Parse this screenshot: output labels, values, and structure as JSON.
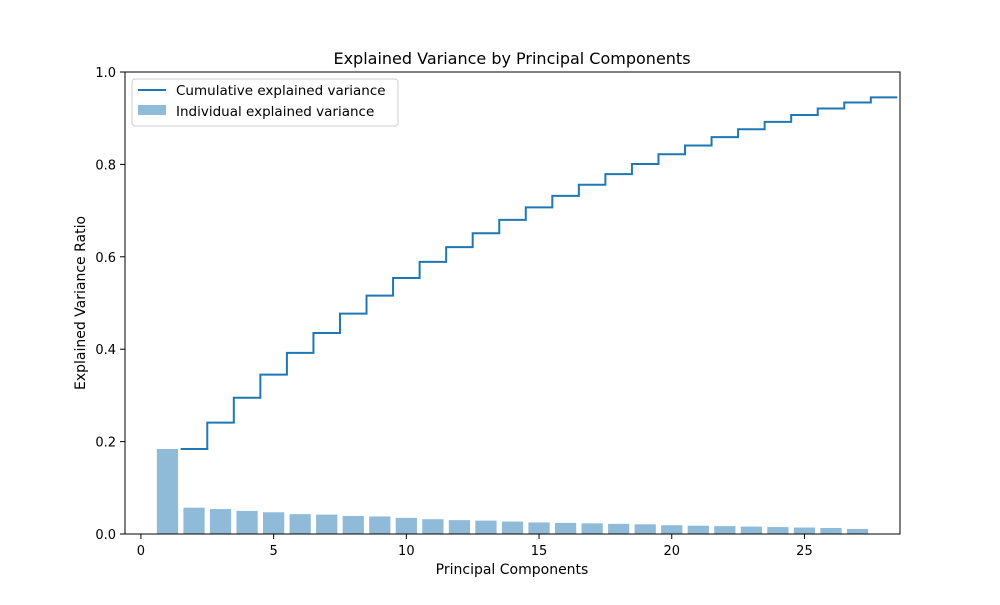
{
  "chart_data": {
    "type": "bar",
    "title": "Explained Variance by Principal Components",
    "xlabel": "Principal Components",
    "ylabel": "Explained Variance Ratio",
    "xlim": [
      -0.6,
      28.6
    ],
    "ylim": [
      0,
      1.0
    ],
    "xticks": [
      0,
      5,
      10,
      15,
      20,
      25
    ],
    "yticks": [
      0.0,
      0.2,
      0.4,
      0.6,
      0.8,
      1.0
    ],
    "grid": false,
    "legend_position": "top-left",
    "components": [
      1,
      2,
      3,
      4,
      5,
      6,
      7,
      8,
      9,
      10,
      11,
      12,
      13,
      14,
      15,
      16,
      17,
      18,
      19,
      20,
      21,
      22,
      23,
      24,
      25,
      26,
      27
    ],
    "series": [
      {
        "name": "Individual explained variance",
        "kind": "bar",
        "color": "#1f77b4",
        "values": [
          0.184,
          0.057,
          0.054,
          0.05,
          0.047,
          0.043,
          0.042,
          0.039,
          0.038,
          0.035,
          0.032,
          0.03,
          0.029,
          0.027,
          0.025,
          0.024,
          0.023,
          0.022,
          0.021,
          0.019,
          0.018,
          0.017,
          0.016,
          0.015,
          0.014,
          0.013,
          0.011
        ]
      },
      {
        "name": "Cumulative explained variance",
        "kind": "step",
        "color": "#1f77b4",
        "values": [
          0.184,
          0.241,
          0.295,
          0.345,
          0.392,
          0.435,
          0.477,
          0.516,
          0.554,
          0.589,
          0.621,
          0.651,
          0.68,
          0.707,
          0.732,
          0.756,
          0.779,
          0.801,
          0.822,
          0.841,
          0.859,
          0.876,
          0.892,
          0.907,
          0.921,
          0.934,
          0.945
        ]
      }
    ]
  }
}
